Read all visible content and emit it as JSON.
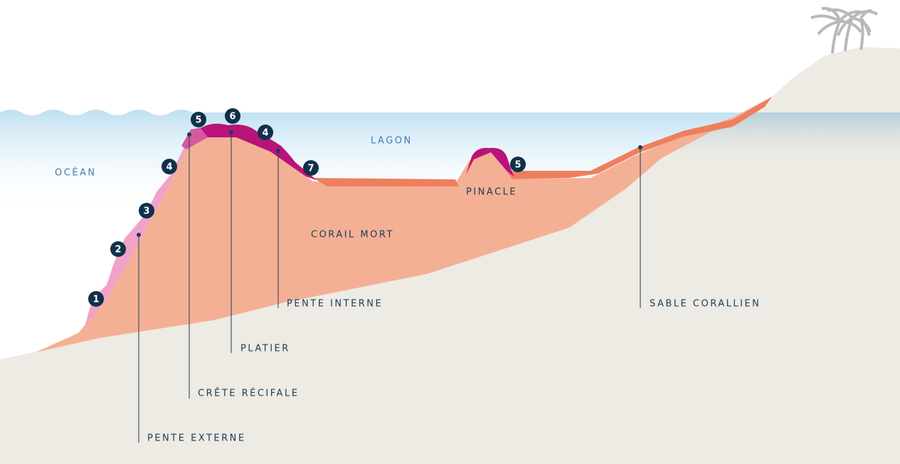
{
  "zones": {
    "ocean": "OCÉAN",
    "lagoon": "LAGON",
    "dead_coral": "CORAIL MORT",
    "pinnacle": "PINACLE"
  },
  "callouts": [
    "PENTE EXTERNE",
    "CRÊTE RÉCIFALE",
    "PLATIER",
    "PENTE INTERNE",
    "SABLE CORALLIEN"
  ],
  "markers": [
    1,
    2,
    3,
    4,
    5,
    6,
    4,
    7,
    5
  ]
}
